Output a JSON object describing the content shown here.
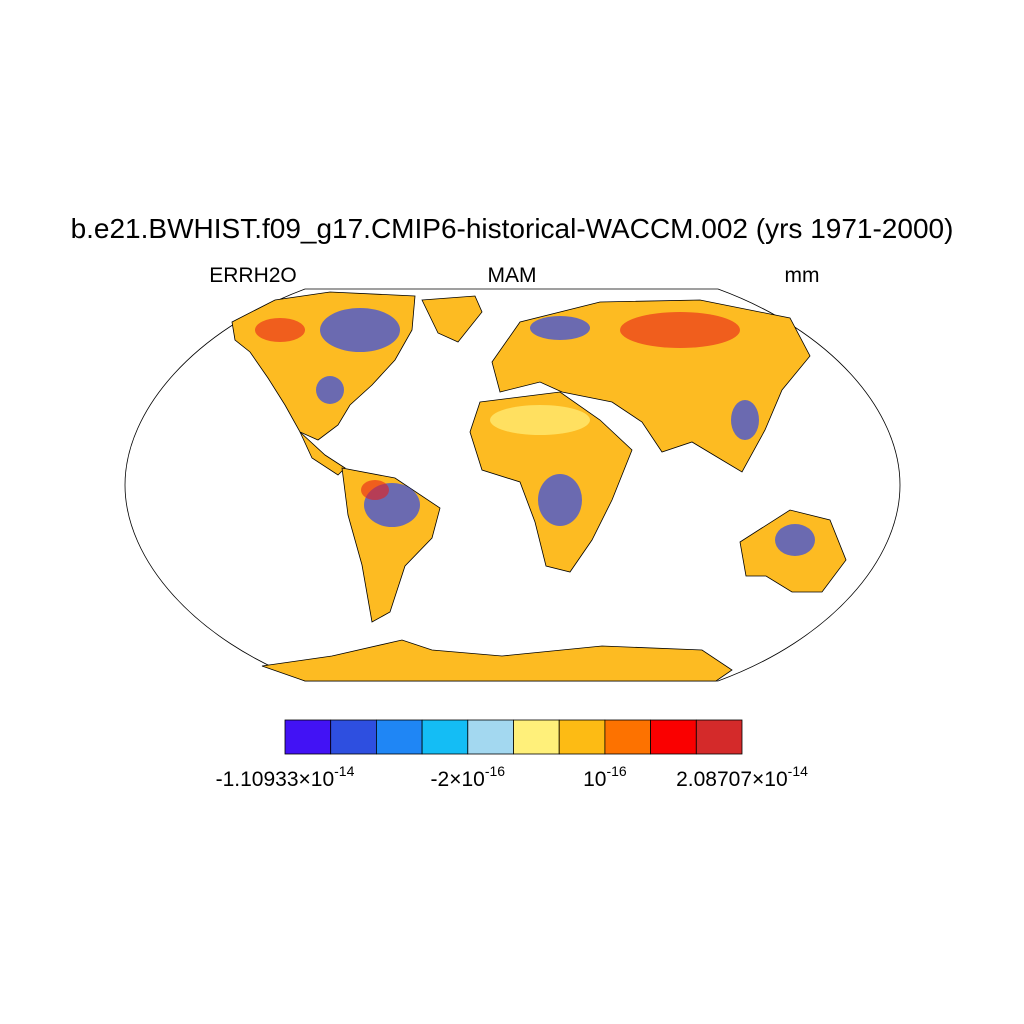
{
  "title": "b.e21.BWHIST.f09_g17.CMIP6-historical-WACCM.002 (yrs 1971-2000)",
  "left_label": "ERRH2O",
  "center_label": "MAM",
  "units_label": "mm",
  "colorbar": {
    "colors": [
      "#4212f5",
      "#2e4fe0",
      "#1f86f5",
      "#14bdf5",
      "#a3d8f0",
      "#fff07a",
      "#fdbb14",
      "#fd7200",
      "#fa0000",
      "#d42a2a"
    ],
    "labels": [
      {
        "text": "-1.10933×10",
        "superscript": "-14"
      },
      {
        "text": "-2×10",
        "superscript": "-16"
      },
      {
        "text": "10",
        "superscript": "-16"
      },
      {
        "text": "2.08707×10",
        "superscript": "-14"
      }
    ]
  }
}
